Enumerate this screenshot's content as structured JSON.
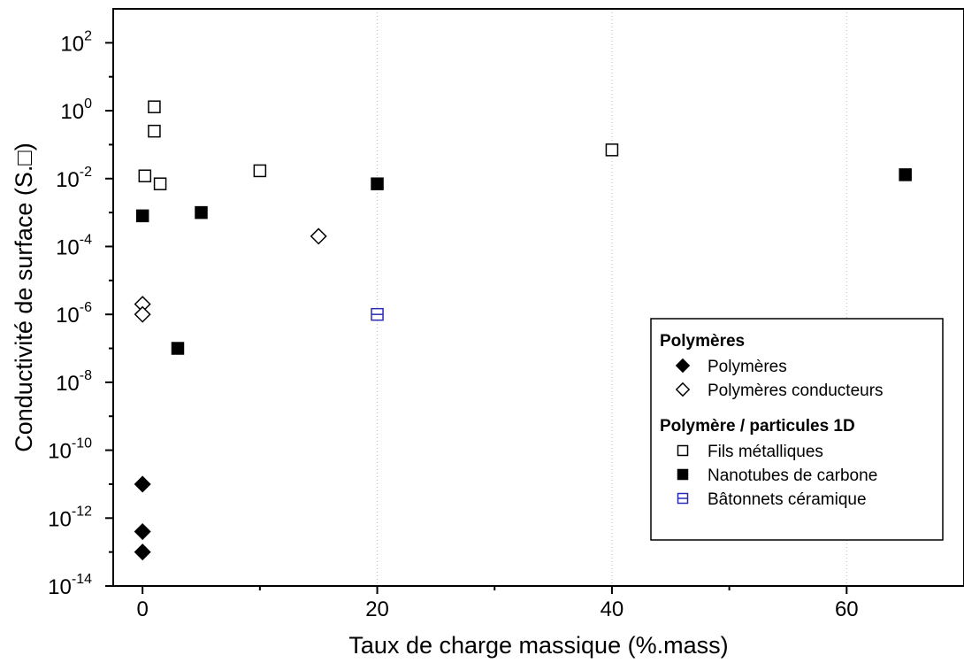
{
  "chart_data": {
    "type": "scatter",
    "xlabel": "Taux de charge massique (%.mass)",
    "ylabel": "Conductivité de surface (S.□)",
    "x_ticks": [
      "0",
      "20",
      "40",
      "60"
    ],
    "x_tick_values": [
      0,
      20,
      40,
      60
    ],
    "xlim": [
      -2.5,
      70
    ],
    "y_scale": "log",
    "ylim": [
      1e-14,
      1000.0
    ],
    "y_ticks": [
      {
        "base": "10",
        "exp": "2",
        "value": 100.0
      },
      {
        "base": "10",
        "exp": "0",
        "value": 1.0
      },
      {
        "base": "10",
        "exp": "-2",
        "value": 0.01
      },
      {
        "base": "10",
        "exp": "-4",
        "value": 0.0001
      },
      {
        "base": "10",
        "exp": "-6",
        "value": 1e-06
      },
      {
        "base": "10",
        "exp": "-8",
        "value": 1e-08
      },
      {
        "base": "10",
        "exp": "-10",
        "value": 1e-10
      },
      {
        "base": "10",
        "exp": "-12",
        "value": 1e-12
      },
      {
        "base": "10",
        "exp": "-14",
        "value": 1e-14
      }
    ],
    "grid": "vertical dotted at x ticks",
    "legend_position": "bottom-right",
    "legend_groups": [
      {
        "title": "Polymères",
        "series": [
          "Polymères",
          "Polymères conducteurs"
        ]
      },
      {
        "title": "Polymère / particules 1D",
        "series": [
          "Fils métalliques",
          "Nanotubes de carbone",
          "Bâtonnets céramique"
        ]
      }
    ],
    "series": [
      {
        "name": "Polymères",
        "marker": "filled-diamond",
        "color": "#000000",
        "points": [
          [
            0,
            1e-11
          ],
          [
            0,
            4e-13
          ],
          [
            0,
            1e-13
          ]
        ]
      },
      {
        "name": "Polymères conducteurs",
        "marker": "open-diamond",
        "color": "#000000",
        "points": [
          [
            0,
            2e-06
          ],
          [
            0,
            1e-06
          ],
          [
            15,
            0.0002
          ]
        ]
      },
      {
        "name": "Fils métalliques",
        "marker": "open-square",
        "color": "#000000",
        "points": [
          [
            1,
            1.3
          ],
          [
            1,
            0.25
          ],
          [
            0.2,
            0.012
          ],
          [
            1.5,
            0.007
          ],
          [
            10,
            0.017
          ],
          [
            40,
            0.07
          ]
        ]
      },
      {
        "name": "Nanotubes de carbone",
        "marker": "filled-square",
        "color": "#000000",
        "points": [
          [
            0,
            0.0008
          ],
          [
            5,
            0.001
          ],
          [
            3,
            1e-07
          ],
          [
            20,
            0.007
          ],
          [
            65,
            0.013
          ]
        ]
      },
      {
        "name": "Bâtonnets céramique",
        "marker": "split-square",
        "color": "#2a2ab8",
        "points": [
          [
            20,
            1e-06
          ]
        ]
      }
    ]
  }
}
